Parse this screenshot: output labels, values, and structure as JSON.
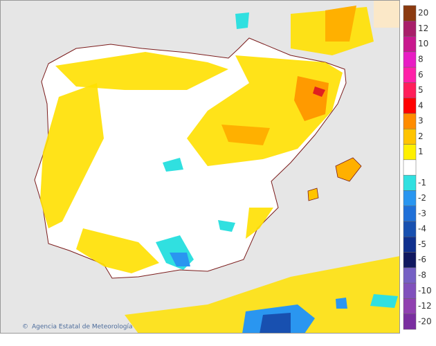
{
  "legend": {
    "items": [
      {
        "label": "20",
        "color": "#8b3a10"
      },
      {
        "label": "12",
        "color": "#a81f6a"
      },
      {
        "label": "10",
        "color": "#c8188e"
      },
      {
        "label": "8",
        "color": "#e81cc4"
      },
      {
        "label": "6",
        "color": "#ff20a8"
      },
      {
        "label": "5",
        "color": "#ff1e5a"
      },
      {
        "label": "4",
        "color": "#ff0000"
      },
      {
        "label": "3",
        "color": "#ff8c00"
      },
      {
        "label": "2",
        "color": "#ffc400"
      },
      {
        "label": "1",
        "color": "#fff000"
      },
      {
        "label": "-1",
        "color": "#30e0e0"
      },
      {
        "label": "-2",
        "color": "#2a96f0"
      },
      {
        "label": "-3",
        "color": "#2070d8"
      },
      {
        "label": "-4",
        "color": "#1850b0"
      },
      {
        "label": "-5",
        "color": "#10308e"
      },
      {
        "label": "-6",
        "color": "#101860"
      },
      {
        "label": "-8",
        "color": "#7560c4"
      },
      {
        "label": "-10",
        "color": "#8050bc"
      },
      {
        "label": "-12",
        "color": "#9040b0"
      },
      {
        "label": "-20",
        "color": "#7a2ea0"
      }
    ]
  },
  "credit": {
    "symbol": "©",
    "text": "Agencia Estatal de Meteorología"
  }
}
